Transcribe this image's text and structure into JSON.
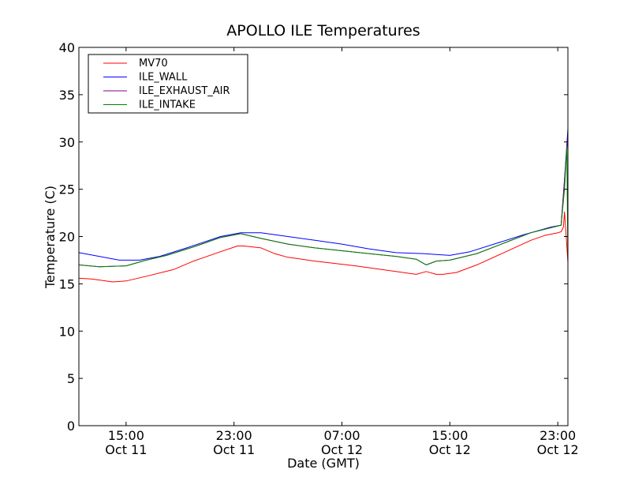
{
  "chart_data": {
    "type": "line",
    "title": "APOLLO ILE Temperatures",
    "xlabel": "Date (GMT)",
    "ylabel": "Temperature (C)",
    "ylim": [
      0,
      40
    ],
    "yticks": [
      "0",
      "5",
      "10",
      "15",
      "20",
      "25",
      "30",
      "35",
      "40"
    ],
    "xlim": [
      "2012-10-11 11:30",
      "2012-10-12 23:45"
    ],
    "xticks": [
      {
        "at": "2012-10-11 15:00",
        "time": "15:00",
        "date": "Oct 11"
      },
      {
        "at": "2012-10-11 23:00",
        "time": "23:00",
        "date": "Oct 11"
      },
      {
        "at": "2012-10-12 07:00",
        "time": "07:00",
        "date": "Oct 12"
      },
      {
        "at": "2012-10-12 15:00",
        "time": "15:00",
        "date": "Oct 12"
      },
      {
        "at": "2012-10-12 23:00",
        "time": "23:00",
        "date": "Oct 12"
      }
    ],
    "grid": false,
    "legend_position": "top-left",
    "series": [
      {
        "name": "MV70",
        "color": "#ff0000",
        "x": [
          "2012-10-11 11:30",
          "2012-10-11 12:30",
          "2012-10-11 14:00",
          "2012-10-11 15:00",
          "2012-10-11 16:30",
          "2012-10-11 18:30",
          "2012-10-11 20:00",
          "2012-10-11 22:00",
          "2012-10-11 23:15",
          "2012-10-11 23:45",
          "2012-10-12 01:00",
          "2012-10-12 02:00",
          "2012-10-12 03:00",
          "2012-10-12 05:00",
          "2012-10-12 08:00",
          "2012-10-12 11:00",
          "2012-10-12 12:30",
          "2012-10-12 13:15",
          "2012-10-12 14:00",
          "2012-10-12 14:30",
          "2012-10-12 15:30",
          "2012-10-12 17:00",
          "2012-10-12 19:00",
          "2012-10-12 21:00",
          "2012-10-12 22:00",
          "2012-10-12 23:00",
          "2012-10-12 23:15",
          "2012-10-12 23:25",
          "2012-10-12 23:30",
          "2012-10-12 23:45"
        ],
        "values": [
          15.6,
          15.5,
          15.2,
          15.3,
          15.8,
          16.5,
          17.4,
          18.4,
          19.0,
          19.0,
          18.8,
          18.2,
          17.8,
          17.4,
          16.9,
          16.3,
          16.0,
          16.3,
          16.0,
          16.0,
          16.2,
          17.0,
          18.3,
          19.6,
          20.1,
          20.4,
          20.5,
          21.0,
          22.6,
          17.3
        ]
      },
      {
        "name": "ILE_WALL",
        "color": "#0000ff",
        "x": [
          "2012-10-11 11:30",
          "2012-10-11 13:00",
          "2012-10-11 14:30",
          "2012-10-11 16:00",
          "2012-10-11 17:30",
          "2012-10-11 19:30",
          "2012-10-11 22:00",
          "2012-10-11 23:30",
          "2012-10-12 01:00",
          "2012-10-12 03:00",
          "2012-10-12 05:00",
          "2012-10-12 07:00",
          "2012-10-12 09:00",
          "2012-10-12 11:00",
          "2012-10-12 13:00",
          "2012-10-12 15:00",
          "2012-10-12 16:30",
          "2012-10-12 18:30",
          "2012-10-12 20:30",
          "2012-10-12 22:30",
          "2012-10-12 23:15",
          "2012-10-12 23:30",
          "2012-10-12 23:45"
        ],
        "values": [
          18.3,
          17.9,
          17.5,
          17.5,
          17.9,
          18.8,
          20.0,
          20.4,
          20.4,
          20.0,
          19.6,
          19.2,
          18.7,
          18.3,
          18.2,
          18.0,
          18.4,
          19.3,
          20.2,
          21.0,
          21.2,
          26.0,
          31.4
        ]
      },
      {
        "name": "ILE_EXHAUST_AIR",
        "color": "#800080",
        "x": [
          "2012-10-11 11:30",
          "2012-10-11 13:00",
          "2012-10-11 15:00",
          "2012-10-11 16:30",
          "2012-10-11 18:00",
          "2012-10-11 20:00",
          "2012-10-11 22:00",
          "2012-10-11 23:30",
          "2012-10-12 01:00",
          "2012-10-12 03:00",
          "2012-10-12 05:00",
          "2012-10-12 07:00",
          "2012-10-12 09:00",
          "2012-10-12 11:00",
          "2012-10-12 12:30",
          "2012-10-12 13:15",
          "2012-10-12 14:00",
          "2012-10-12 15:00",
          "2012-10-12 17:00",
          "2012-10-12 19:00",
          "2012-10-12 21:00",
          "2012-10-12 23:15",
          "2012-10-12 23:30",
          "2012-10-12 23:45"
        ],
        "values": [
          17.0,
          16.8,
          16.9,
          17.5,
          18.0,
          18.9,
          19.9,
          20.3,
          19.8,
          19.2,
          18.8,
          18.5,
          18.2,
          17.9,
          17.6,
          17.0,
          17.4,
          17.5,
          18.2,
          19.3,
          20.4,
          21.2,
          26.0,
          30.8
        ]
      },
      {
        "name": "ILE_INTAKE",
        "color": "#008000",
        "x": [
          "2012-10-11 11:30",
          "2012-10-11 13:00",
          "2012-10-11 15:00",
          "2012-10-11 16:30",
          "2012-10-11 18:00",
          "2012-10-11 20:00",
          "2012-10-11 22:00",
          "2012-10-11 23:30",
          "2012-10-12 01:00",
          "2012-10-12 03:00",
          "2012-10-12 05:00",
          "2012-10-12 07:00",
          "2012-10-12 09:00",
          "2012-10-12 11:00",
          "2012-10-12 12:30",
          "2012-10-12 13:15",
          "2012-10-12 14:00",
          "2012-10-12 15:00",
          "2012-10-12 17:00",
          "2012-10-12 19:00",
          "2012-10-12 21:00",
          "2012-10-12 23:15",
          "2012-10-12 23:30",
          "2012-10-12 23:40",
          "2012-10-12 23:45"
        ],
        "values": [
          17.0,
          16.8,
          16.9,
          17.5,
          18.0,
          18.9,
          19.9,
          20.3,
          19.8,
          19.2,
          18.8,
          18.5,
          18.2,
          17.9,
          17.6,
          17.0,
          17.4,
          17.5,
          18.2,
          19.3,
          20.4,
          21.2,
          25.0,
          29.5,
          17.2
        ]
      }
    ]
  }
}
